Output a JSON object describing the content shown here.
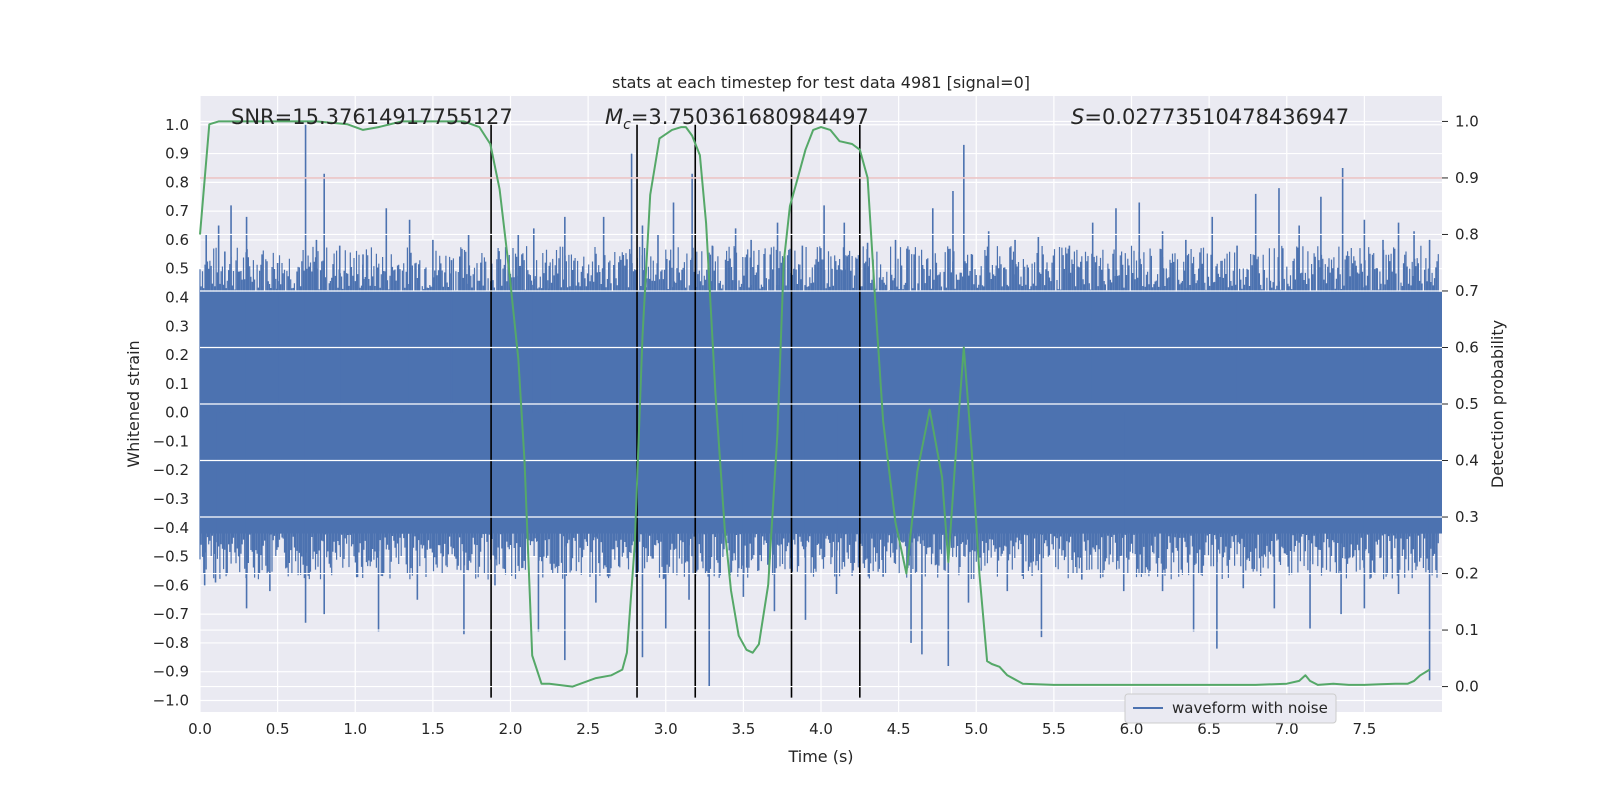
{
  "chart_data": {
    "type": "line",
    "title": "stats at each timestep for test data 4981 [signal=0]",
    "xlabel": "Time (s)",
    "ylabel_left": "Whitened strain",
    "ylabel_right": "Detection probability",
    "xlim": [
      0,
      8
    ],
    "ylim_left": [
      -1.04,
      1.1
    ],
    "ylim_right": [
      -0.045,
      1.045
    ],
    "x_ticks": [
      0.0,
      0.5,
      1.0,
      1.5,
      2.0,
      2.5,
      3.0,
      3.5,
      4.0,
      4.5,
      5.0,
      5.5,
      6.0,
      6.5,
      7.0,
      7.5
    ],
    "y_left_ticks": [
      -1.0,
      -0.9,
      -0.8,
      -0.7,
      -0.6,
      -0.5,
      -0.4,
      -0.3,
      -0.2,
      -0.1,
      0.0,
      0.1,
      0.2,
      0.3,
      0.4,
      0.5,
      0.6,
      0.7,
      0.8,
      0.9,
      1.0
    ],
    "y_right_ticks": [
      0.0,
      0.1,
      0.2,
      0.3,
      0.4,
      0.5,
      0.6,
      0.7,
      0.8,
      0.9,
      1.0
    ],
    "grid": true,
    "legend_position": "lower-right",
    "annotations": {
      "snr": "SNR=15.37614917755127",
      "mc_symbol": "M",
      "mc_subscript": "c",
      "mc_value": "=3.750361680984497",
      "s_symbol": "S",
      "s_value": "=0.02773510478436947"
    },
    "threshold_line": {
      "axis": "right",
      "y": 0.9,
      "color": "#c44e52"
    },
    "vertical_lines": [
      1.875,
      2.815,
      3.19,
      3.81,
      4.25
    ],
    "waveform": {
      "name": "waveform with noise",
      "color": "#4c72b0",
      "band_low": -0.42,
      "band_high": 0.42,
      "spikes_up": [
        [
          0.04,
          0.62
        ],
        [
          0.12,
          0.65
        ],
        [
          0.16,
          0.56
        ],
        [
          0.2,
          0.72
        ],
        [
          0.3,
          0.68
        ],
        [
          0.4,
          0.55
        ],
        [
          0.5,
          0.52
        ],
        [
          0.68,
          1.0
        ],
        [
          0.75,
          0.6
        ],
        [
          0.8,
          0.83
        ],
        [
          0.9,
          0.58
        ],
        [
          1.05,
          0.55
        ],
        [
          1.2,
          0.71
        ],
        [
          1.35,
          0.67
        ],
        [
          1.5,
          0.6
        ],
        [
          1.62,
          0.53
        ],
        [
          1.73,
          0.62
        ],
        [
          2.05,
          0.62
        ],
        [
          2.15,
          0.64
        ],
        [
          2.25,
          0.51
        ],
        [
          2.35,
          0.68
        ],
        [
          2.6,
          0.68
        ],
        [
          2.78,
          0.9
        ],
        [
          2.85,
          0.65
        ],
        [
          2.95,
          0.62
        ],
        [
          3.05,
          0.73
        ],
        [
          3.17,
          0.83
        ],
        [
          3.3,
          0.58
        ],
        [
          3.45,
          0.64
        ],
        [
          3.55,
          0.6
        ],
        [
          3.72,
          0.66
        ],
        [
          3.88,
          0.58
        ],
        [
          4.02,
          0.72
        ],
        [
          4.15,
          0.66
        ],
        [
          4.3,
          0.59
        ],
        [
          4.48,
          0.6
        ],
        [
          4.6,
          0.55
        ],
        [
          4.72,
          0.71
        ],
        [
          4.85,
          0.77
        ],
        [
          4.92,
          0.93
        ],
        [
          5.08,
          0.63
        ],
        [
          5.25,
          0.6
        ],
        [
          5.4,
          0.61
        ],
        [
          5.6,
          0.58
        ],
        [
          5.75,
          0.66
        ],
        [
          5.9,
          0.71
        ],
        [
          6.05,
          0.73
        ],
        [
          6.2,
          0.63
        ],
        [
          6.35,
          0.6
        ],
        [
          6.52,
          0.68
        ],
        [
          6.68,
          0.58
        ],
        [
          6.8,
          0.76
        ],
        [
          6.95,
          0.78
        ],
        [
          7.08,
          0.65
        ],
        [
          7.22,
          0.75
        ],
        [
          7.36,
          0.85
        ],
        [
          7.5,
          0.67
        ],
        [
          7.62,
          0.6
        ],
        [
          7.72,
          0.66
        ],
        [
          7.82,
          0.63
        ],
        [
          7.92,
          0.6
        ]
      ],
      "spikes_down": [
        [
          0.03,
          -0.6
        ],
        [
          0.1,
          -0.59
        ],
        [
          0.3,
          -0.68
        ],
        [
          0.45,
          -0.62
        ],
        [
          0.68,
          -0.73
        ],
        [
          0.8,
          -0.7
        ],
        [
          1.15,
          -0.76
        ],
        [
          1.4,
          -0.65
        ],
        [
          1.7,
          -0.77
        ],
        [
          1.9,
          -0.6
        ],
        [
          2.18,
          -0.76
        ],
        [
          2.35,
          -0.86
        ],
        [
          2.55,
          -0.66
        ],
        [
          2.85,
          -0.85
        ],
        [
          3.0,
          -0.75
        ],
        [
          3.15,
          -0.65
        ],
        [
          3.28,
          -0.95
        ],
        [
          3.5,
          -0.64
        ],
        [
          3.7,
          -0.69
        ],
        [
          3.9,
          -0.72
        ],
        [
          4.1,
          -0.63
        ],
        [
          4.4,
          -0.57
        ],
        [
          4.58,
          -0.8
        ],
        [
          4.65,
          -0.84
        ],
        [
          4.82,
          -0.88
        ],
        [
          4.95,
          -0.66
        ],
        [
          5.2,
          -0.62
        ],
        [
          5.42,
          -0.78
        ],
        [
          5.68,
          -0.58
        ],
        [
          5.95,
          -0.62
        ],
        [
          6.2,
          -0.62
        ],
        [
          6.4,
          -0.76
        ],
        [
          6.55,
          -0.82
        ],
        [
          6.72,
          -0.61
        ],
        [
          6.92,
          -0.68
        ],
        [
          7.15,
          -0.75
        ],
        [
          7.35,
          -0.7
        ],
        [
          7.5,
          -0.68
        ],
        [
          7.72,
          -0.63
        ],
        [
          7.92,
          -0.93
        ]
      ]
    },
    "probability": {
      "color": "#55a868",
      "x": [
        0.0,
        0.06,
        0.12,
        0.25,
        0.5,
        0.75,
        0.95,
        1.05,
        1.15,
        1.3,
        1.5,
        1.7,
        1.8,
        1.87,
        1.93,
        1.99,
        2.05,
        2.09,
        2.14,
        2.2,
        2.25,
        2.4,
        2.5,
        2.55,
        2.65,
        2.72,
        2.75,
        2.8,
        2.85,
        2.9,
        2.96,
        3.04,
        3.1,
        3.13,
        3.17,
        3.22,
        3.26,
        3.32,
        3.38,
        3.42,
        3.47,
        3.52,
        3.56,
        3.6,
        3.66,
        3.72,
        3.76,
        3.8,
        3.84,
        3.9,
        3.95,
        4.0,
        4.06,
        4.12,
        4.2,
        4.25,
        4.3,
        4.35,
        4.4,
        4.48,
        4.55,
        4.62,
        4.7,
        4.78,
        4.82,
        4.87,
        4.92,
        4.97,
        5.02,
        5.07,
        5.1,
        5.15,
        5.2,
        5.3,
        5.5,
        6.0,
        6.5,
        6.8,
        7.0,
        7.08,
        7.12,
        7.15,
        7.2,
        7.3,
        7.4,
        7.5,
        7.6,
        7.7,
        7.78,
        7.82,
        7.86,
        7.92
      ],
      "y": [
        0.8,
        0.995,
        1.0,
        1.0,
        1.0,
        1.0,
        0.995,
        0.985,
        0.99,
        1.0,
        1.0,
        1.0,
        0.99,
        0.96,
        0.88,
        0.74,
        0.58,
        0.4,
        0.055,
        0.005,
        0.005,
        0.0,
        0.01,
        0.015,
        0.02,
        0.03,
        0.06,
        0.25,
        0.62,
        0.87,
        0.97,
        0.985,
        0.99,
        0.99,
        0.975,
        0.94,
        0.82,
        0.52,
        0.28,
        0.17,
        0.09,
        0.065,
        0.06,
        0.075,
        0.18,
        0.45,
        0.75,
        0.85,
        0.89,
        0.95,
        0.985,
        0.99,
        0.985,
        0.965,
        0.96,
        0.95,
        0.9,
        0.68,
        0.47,
        0.29,
        0.2,
        0.38,
        0.49,
        0.37,
        0.22,
        0.42,
        0.6,
        0.42,
        0.2,
        0.045,
        0.04,
        0.035,
        0.02,
        0.005,
        0.003,
        0.003,
        0.003,
        0.003,
        0.005,
        0.01,
        0.02,
        0.01,
        0.003,
        0.005,
        0.003,
        0.003,
        0.004,
        0.005,
        0.005,
        0.01,
        0.02,
        0.03
      ]
    }
  }
}
